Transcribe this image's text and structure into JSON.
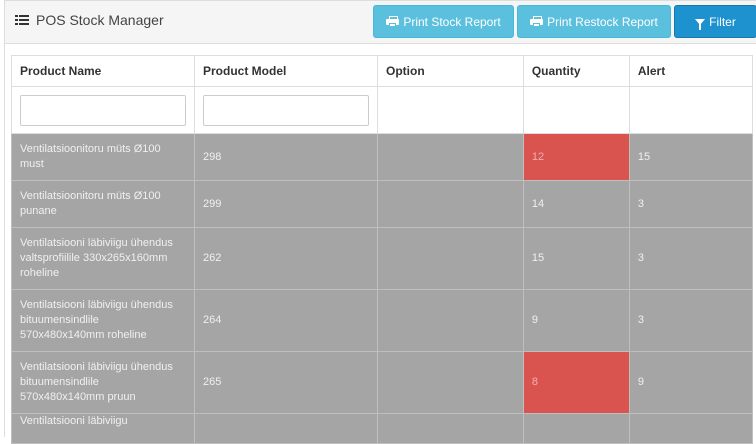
{
  "header": {
    "title": "POS Stock Manager",
    "buttons": {
      "print_stock": "Print Stock Report",
      "print_restock": "Print Restock Report",
      "filter": "Filter"
    }
  },
  "table": {
    "columns": [
      "Product Name",
      "Product Model",
      "Option",
      "Quantity",
      "Alert"
    ],
    "filters": {
      "product_name": "",
      "product_model": ""
    },
    "rows": [
      {
        "name": "Ventilatsioonitoru müts Ø100 must",
        "model": "298",
        "option": "",
        "quantity": "12",
        "alert": "15",
        "low": true
      },
      {
        "name": "Ventilatsioonitoru müts Ø100 punane",
        "model": "299",
        "option": "",
        "quantity": "14",
        "alert": "3",
        "low": false
      },
      {
        "name": "Ventilatsiooni läbiviigu ühendus valtsprofiilile 330x265x160mm roheline",
        "model": "262",
        "option": "",
        "quantity": "15",
        "alert": "3",
        "low": false
      },
      {
        "name": "Ventilatsiooni läbiviigu ühendus bituumensindlile 570x480x140mm roheline",
        "model": "264",
        "option": "",
        "quantity": "9",
        "alert": "3",
        "low": false
      },
      {
        "name": "Ventilatsiooni läbiviigu ühendus bituumensindlile 570x480x140mm pruun",
        "model": "265",
        "option": "",
        "quantity": "8",
        "alert": "9",
        "low": true
      },
      {
        "name": "Ventilatsiooni läbiviigu",
        "model": "",
        "option": "",
        "quantity": "",
        "alert": "",
        "low": false
      }
    ]
  },
  "colors": {
    "low_stock": "#d9534f",
    "row_bg": "#a5a5a5",
    "btn_info": "#5bc0de",
    "btn_primary": "#1e91cf"
  },
  "icons": {
    "title": "list-icon",
    "print": "printer-icon",
    "filter": "filter-icon"
  }
}
